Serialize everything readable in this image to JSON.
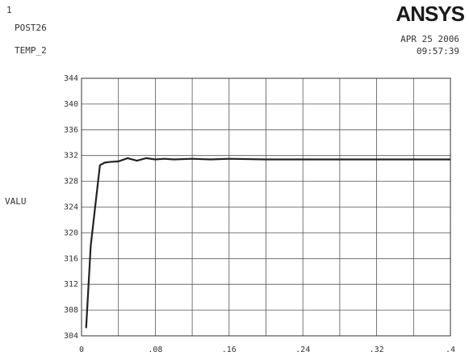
{
  "header": {
    "window_number": "1",
    "processor": "POST26",
    "variable": "TEMP_2",
    "logo": "ANSYS",
    "date": "APR 25 2006",
    "time": "09:57:39"
  },
  "chart_data": {
    "type": "line",
    "title": "",
    "xlabel": "",
    "ylabel": "VALU",
    "xlim": [
      0,
      0.4
    ],
    "ylim": [
      304,
      344
    ],
    "x_ticks": [
      "0",
      ".08",
      ".16",
      ".24",
      ".32",
      ".4"
    ],
    "y_ticks": [
      "304",
      "308",
      "312",
      "316",
      "320",
      "324",
      "328",
      "332",
      "336",
      "340",
      "344"
    ],
    "grid": true,
    "series": [
      {
        "name": "",
        "color": "#222222",
        "x": [
          0.005,
          0.01,
          0.02,
          0.025,
          0.03,
          0.04,
          0.05,
          0.06,
          0.07,
          0.08,
          0.09,
          0.1,
          0.12,
          0.14,
          0.16,
          0.2,
          0.24,
          0.28,
          0.32,
          0.36,
          0.4
        ],
        "y": [
          305.2,
          318,
          330.5,
          330.9,
          331.0,
          331.1,
          331.6,
          331.2,
          331.6,
          331.4,
          331.5,
          331.4,
          331.5,
          331.4,
          331.5,
          331.4,
          331.4,
          331.4,
          331.4,
          331.4,
          331.4
        ]
      }
    ]
  }
}
